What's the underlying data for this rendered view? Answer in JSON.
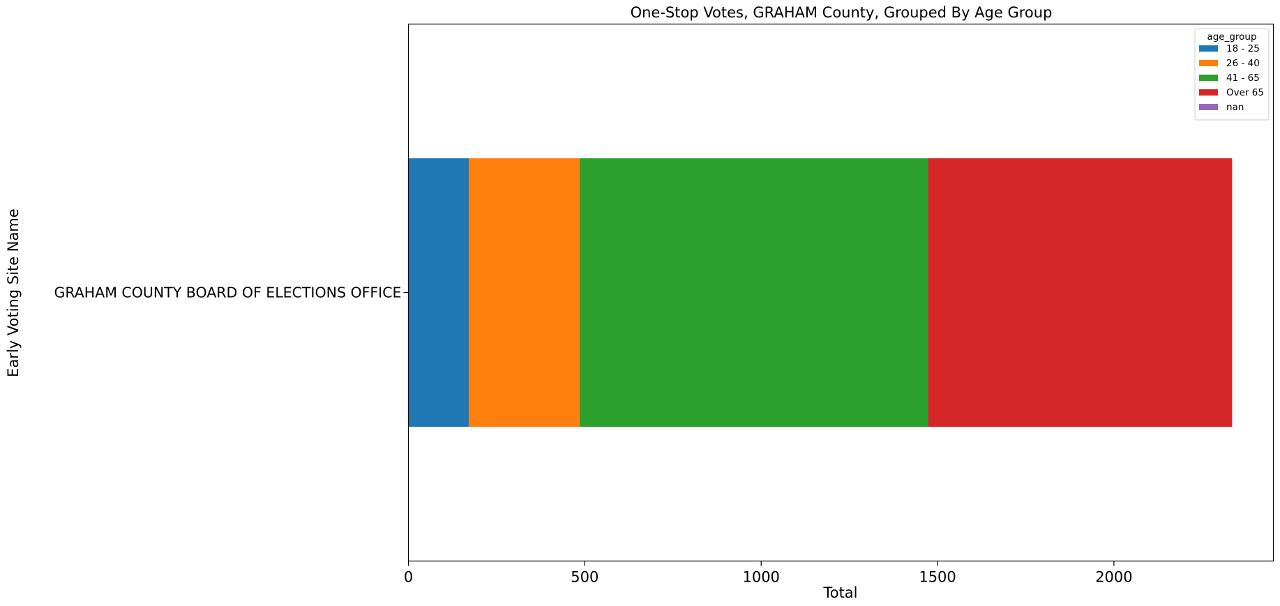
{
  "chart_data": {
    "type": "bar",
    "orientation": "horizontal",
    "stacked": true,
    "title": "One-Stop Votes, GRAHAM County, Grouped By Age Group",
    "xlabel": "Total",
    "ylabel": "Early Voting Site Name",
    "categories": [
      "GRAHAM COUNTY BOARD OF ELECTIONS OFFICE"
    ],
    "series": [
      {
        "name": "18 - 25",
        "color": "#1f77b4",
        "values": [
          171
        ]
      },
      {
        "name": "26 - 40",
        "color": "#ff7f0e",
        "values": [
          314
        ]
      },
      {
        "name": "41 - 65",
        "color": "#2ca02c",
        "values": [
          988
        ]
      },
      {
        "name": "Over 65",
        "color": "#d62728",
        "values": [
          862
        ]
      },
      {
        "name": "nan",
        "color": "#9467bd",
        "values": [
          0
        ]
      }
    ],
    "xlim": [
      0,
      2452
    ],
    "xticks": [
      0,
      500,
      1000,
      1500,
      2000
    ],
    "grid": false,
    "legend": {
      "title": "age_group",
      "placement": "top-right"
    }
  }
}
